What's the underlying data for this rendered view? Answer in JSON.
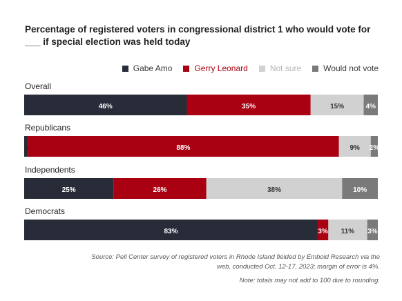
{
  "chart_data": {
    "type": "bar",
    "orientation": "horizontal",
    "stacked": true,
    "title": "Percentage of registered voters in congressional district 1 who would vote for ___ if special election was held today",
    "categories": [
      "Overall",
      "Republicans",
      "Independents",
      "Democrats"
    ],
    "series": [
      {
        "name": "Gabe Amo",
        "color": "#272c38",
        "values": [
          46,
          1,
          25,
          83
        ],
        "labels": [
          "46%",
          "1%",
          "25%",
          "83%"
        ]
      },
      {
        "name": "Gerry Leonard",
        "color": "#a90012",
        "values": [
          35,
          88,
          26,
          3
        ],
        "labels": [
          "35%",
          "88%",
          "26%",
          "3%"
        ]
      },
      {
        "name": "Not sure",
        "color": "#d1d1d1",
        "values": [
          15,
          9,
          38,
          11
        ],
        "labels": [
          "15%",
          "9%",
          "38%",
          "11%"
        ]
      },
      {
        "name": "Would not vote",
        "color": "#7a7a7a",
        "values": [
          4,
          2,
          10,
          3
        ],
        "labels": [
          "4%",
          "2%",
          "10%",
          "3%"
        ]
      }
    ],
    "legend_position": "top-right",
    "grid": false,
    "xlim": [
      0,
      100
    ]
  },
  "source_text": "Source: Pell Center survey of registered voters in Rhode Island fielded by Embold Research via the web, conducted Oct. 12-17, 2023; margin of error is 4%.",
  "note_text": "Note: totals may not add to 100 due to rounding."
}
